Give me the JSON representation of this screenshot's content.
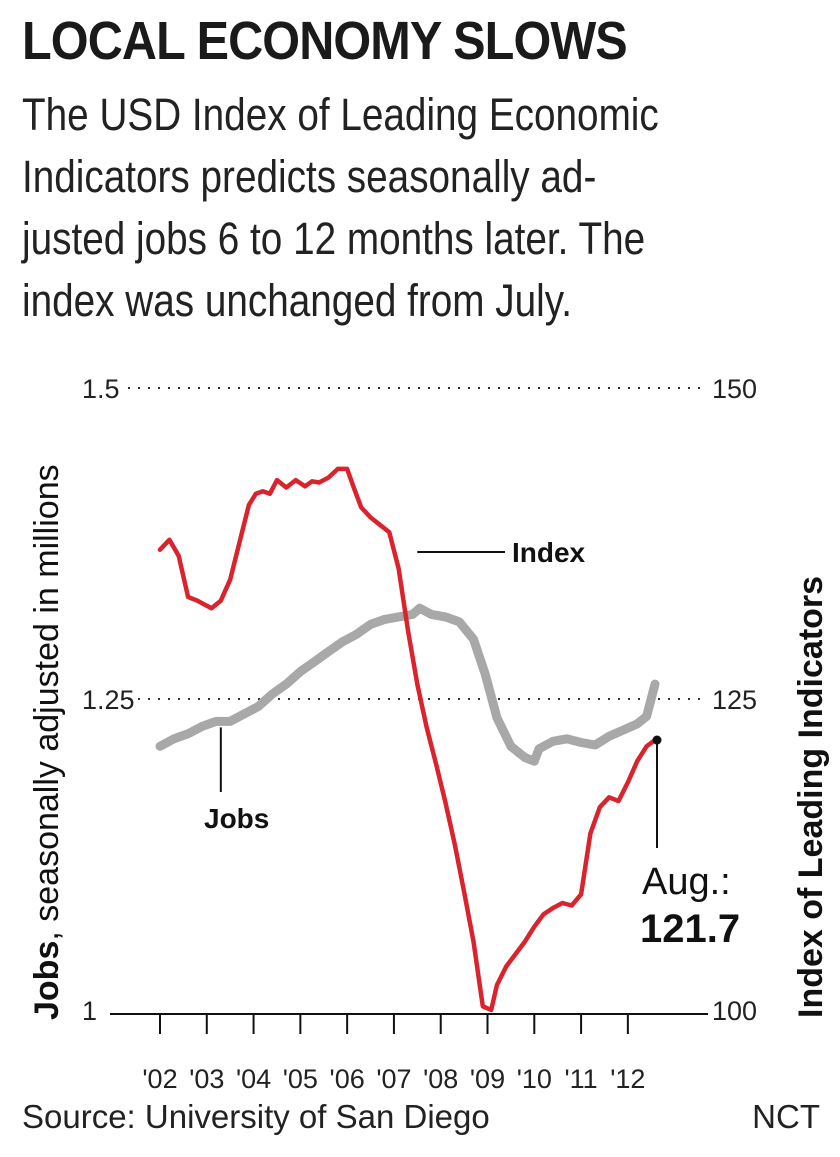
{
  "headline": "LOCAL ECONOMY SLOWS",
  "subtitle_lines": [
    "The USD Index of Leading Economic",
    "Indicators predicts seasonally ad-",
    "justed jobs 6 to 12 months later. The",
    "index was unchanged from July."
  ],
  "source": "Source: University of San Diego",
  "credit": "NCT",
  "chart_data": {
    "type": "line",
    "left_axis": {
      "title_bold": "Jobs",
      "title_rest": ", seasonally adjusted in millions",
      "range": [
        1,
        1.5
      ],
      "ticks": [
        "1",
        "1.25",
        "1.5"
      ]
    },
    "right_axis": {
      "title": "Index of Leading Indicators",
      "range": [
        100,
        150
      ],
      "ticks": [
        "100",
        "125",
        "150"
      ]
    },
    "x_ticks": [
      "'02",
      "'03",
      "'04",
      "'05",
      "'06",
      "'07",
      "'08",
      "'09",
      "'10",
      "'11",
      "'12"
    ],
    "x_range": [
      2002,
      2012.75
    ],
    "grid": "dotted horizontal lines at 1.25/125 and 1.5/150",
    "series": [
      {
        "name": "Index",
        "axis": "right",
        "color": "#d9232d",
        "x": [
          2002.0,
          2002.2,
          2002.4,
          2002.6,
          2002.8,
          2002.95,
          2003.1,
          2003.3,
          2003.5,
          2003.7,
          2003.9,
          2004.05,
          2004.2,
          2004.35,
          2004.5,
          2004.7,
          2004.9,
          2005.1,
          2005.25,
          2005.4,
          2005.6,
          2005.8,
          2006.0,
          2006.15,
          2006.3,
          2006.5,
          2006.7,
          2006.9,
          2007.1,
          2007.3,
          2007.5,
          2007.7,
          2007.9,
          2008.1,
          2008.3,
          2008.5,
          2008.7,
          2008.9,
          2009.08,
          2009.2,
          2009.4,
          2009.6,
          2009.8,
          2010.0,
          2010.2,
          2010.4,
          2010.6,
          2010.8,
          2011.0,
          2011.2,
          2011.4,
          2011.6,
          2011.8,
          2012.0,
          2012.2,
          2012.4,
          2012.58
        ],
        "values": [
          137.0,
          137.8,
          136.5,
          133.2,
          132.9,
          132.6,
          132.3,
          132.9,
          134.6,
          137.6,
          140.6,
          141.5,
          141.7,
          141.5,
          142.6,
          142.0,
          142.6,
          142.1,
          142.5,
          142.4,
          142.8,
          143.5,
          143.5,
          141.9,
          140.4,
          139.6,
          139.0,
          138.4,
          135.5,
          130.5,
          126.2,
          122.7,
          119.8,
          116.7,
          113.3,
          109.5,
          105.5,
          100.3,
          100.0,
          102.0,
          103.5,
          104.5,
          105.5,
          106.7,
          107.7,
          108.2,
          108.6,
          108.4,
          109.3,
          114.2,
          116.3,
          117.1,
          116.8,
          118.3,
          120.0,
          121.2,
          121.7
        ]
      },
      {
        "name": "Jobs",
        "axis": "left",
        "color": "#a8a8a8",
        "x": [
          2002.0,
          2002.3,
          2002.6,
          2002.9,
          2003.2,
          2003.5,
          2003.8,
          2004.1,
          2004.4,
          2004.7,
          2005.0,
          2005.3,
          2005.6,
          2005.9,
          2006.2,
          2006.5,
          2006.8,
          2007.1,
          2007.4,
          2007.55,
          2007.8,
          2008.1,
          2008.4,
          2008.7,
          2008.95,
          2009.2,
          2009.5,
          2009.8,
          2010.0,
          2010.1,
          2010.4,
          2010.7,
          2011.0,
          2011.3,
          2011.6,
          2011.9,
          2012.2,
          2012.4,
          2012.58
        ],
        "values": [
          1.212,
          1.218,
          1.222,
          1.228,
          1.232,
          1.232,
          1.238,
          1.244,
          1.254,
          1.262,
          1.272,
          1.28,
          1.288,
          1.296,
          1.302,
          1.31,
          1.314,
          1.316,
          1.318,
          1.323,
          1.318,
          1.316,
          1.312,
          1.298,
          1.27,
          1.235,
          1.212,
          1.203,
          1.2,
          1.21,
          1.216,
          1.218,
          1.215,
          1.213,
          1.22,
          1.225,
          1.23,
          1.236,
          1.262
        ]
      }
    ],
    "annotations": {
      "index_label": "Index",
      "jobs_label": "Jobs",
      "latest_label": "Aug.:",
      "latest_value": "121.7"
    }
  }
}
